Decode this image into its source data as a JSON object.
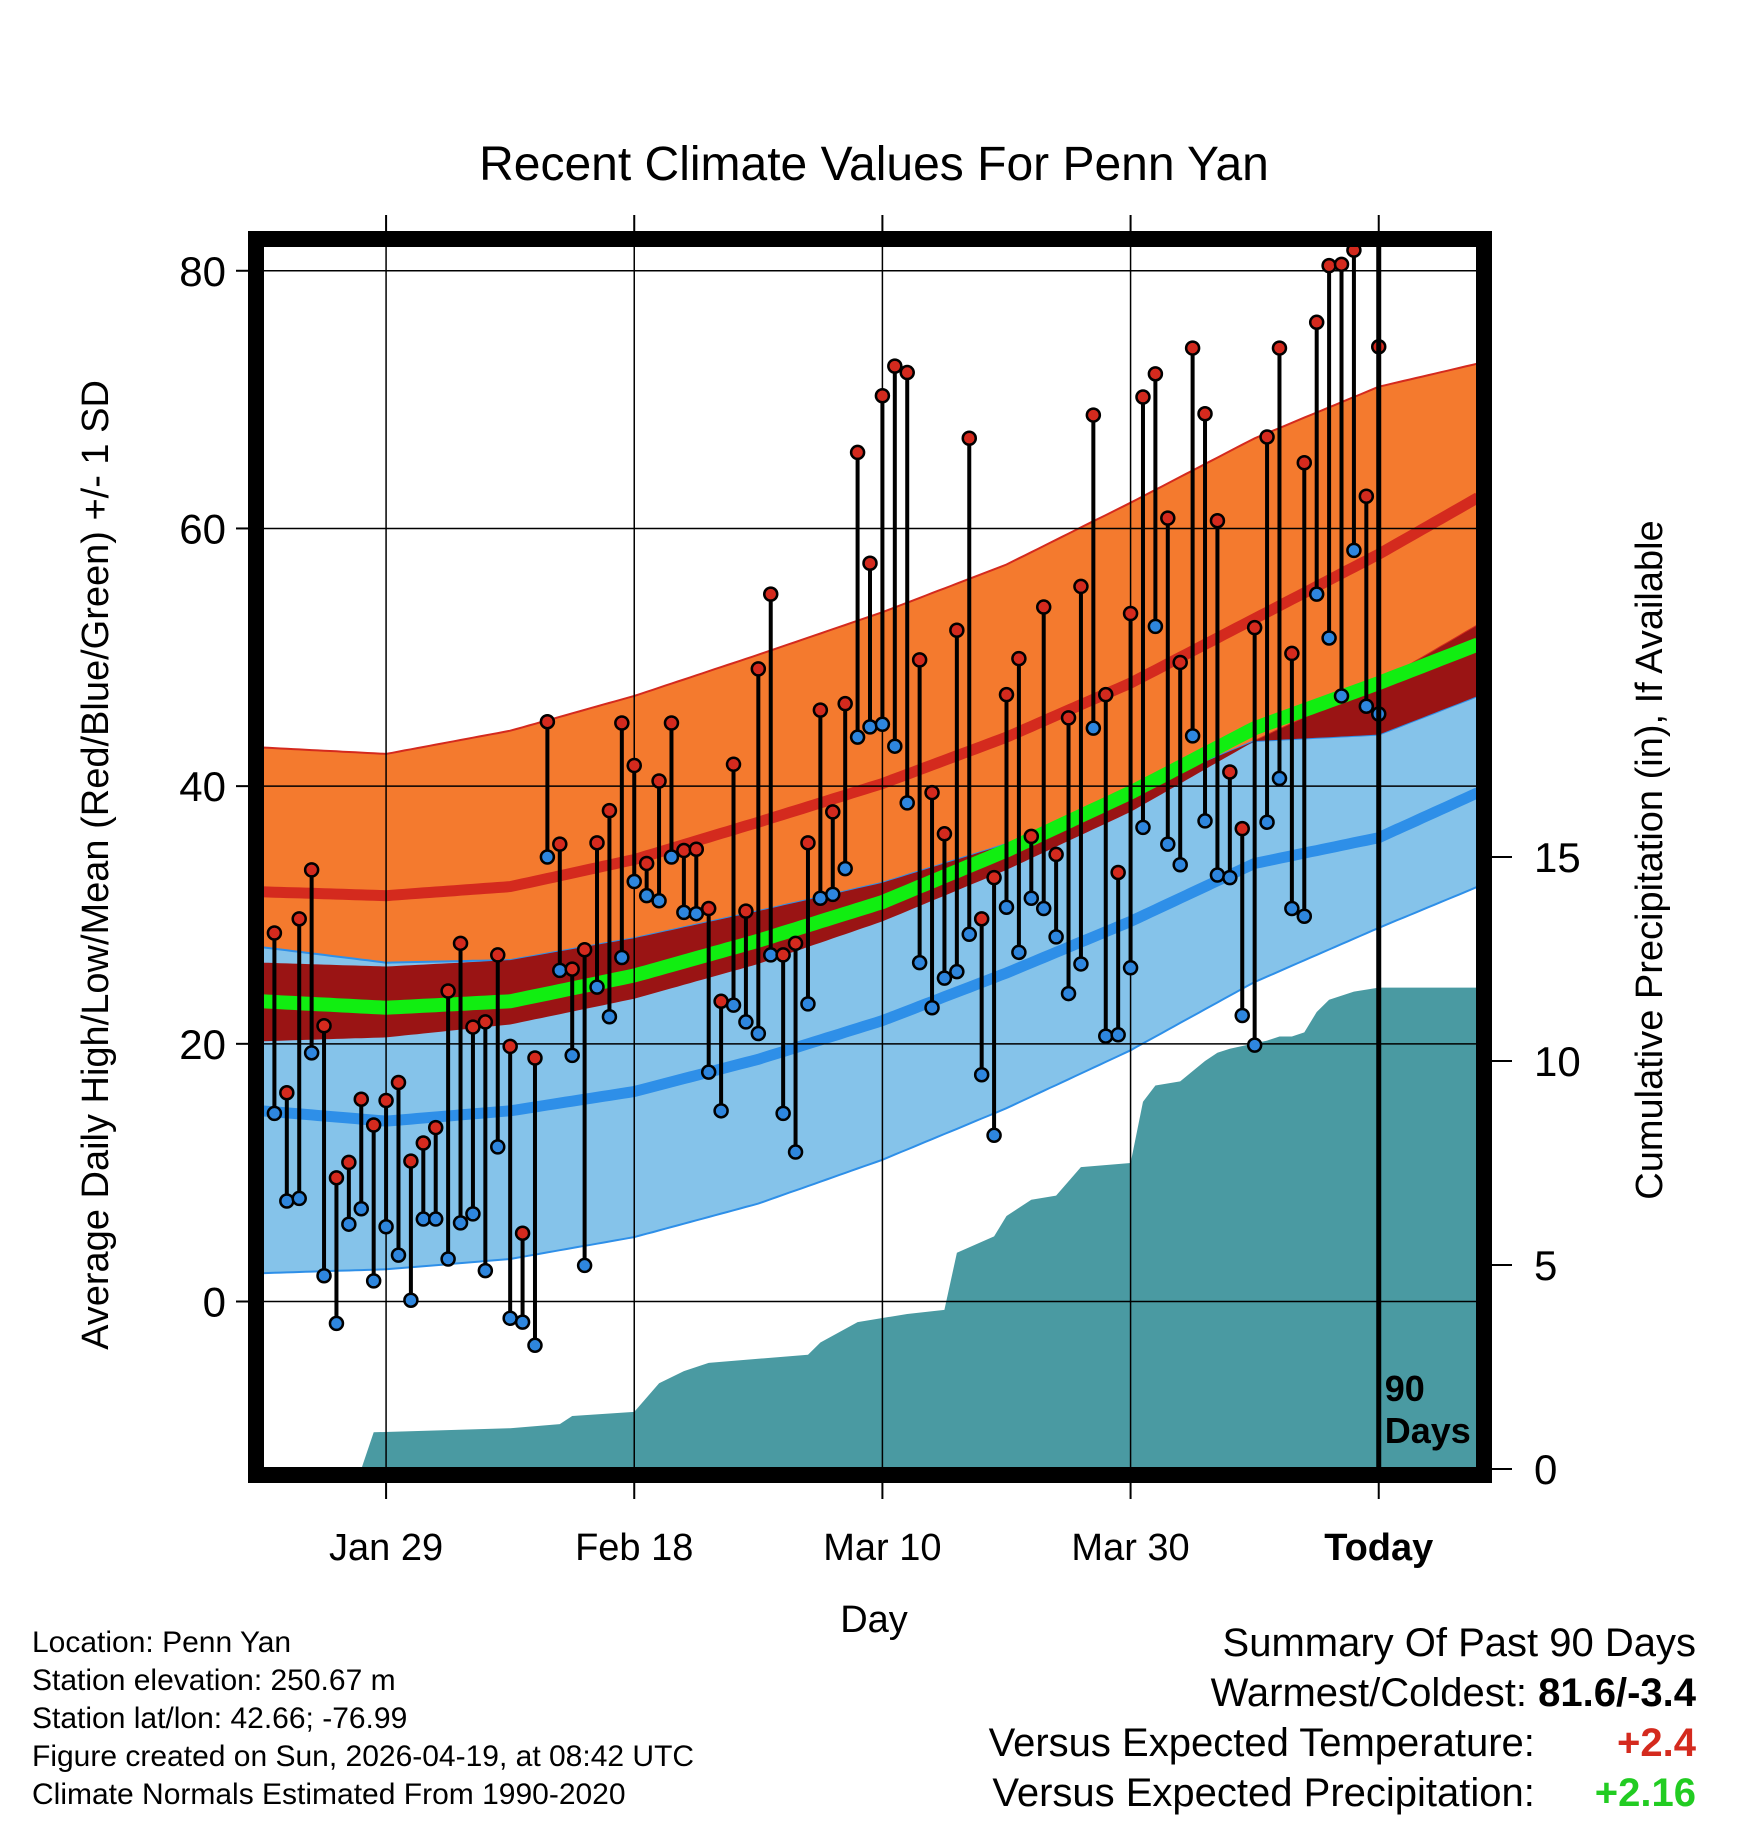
{
  "chart_data": {
    "type": "line",
    "title": "Recent Climate Values For Penn Yan",
    "xlabel": "Day",
    "ylabel": "Average Daily High/Low/Mean (Red/Blue/Green) +/- 1 SD",
    "y2label": "Cumulative Precipitation (in), If Available",
    "ylim": [
      -13,
      82
    ],
    "y_ticks": [
      "0",
      "20",
      "40",
      "60",
      "80"
    ],
    "y2lim": [
      0,
      30
    ],
    "y2_ticks": [
      "0",
      "5",
      "10",
      "15"
    ],
    "x_range_days": [
      -90,
      8
    ],
    "x_ticks": [
      {
        "label": "Jan 29",
        "day": -80
      },
      {
        "label": "Feb 18",
        "day": -60
      },
      {
        "label": "Mar 10",
        "day": -40
      },
      {
        "label": "Mar 30",
        "day": -20
      },
      {
        "label": "Today",
        "day": 0
      }
    ],
    "today_day": 0,
    "today_label": "90\nDays",
    "normals": {
      "days": [
        -90,
        -80,
        -70,
        -60,
        -50,
        -40,
        -30,
        -20,
        -10,
        0,
        8
      ],
      "high_mean": [
        31.8,
        31.5,
        32.2,
        34.3,
        37.2,
        40.2,
        43.8,
        48.0,
        53.0,
        58.0,
        62.4
      ],
      "high_upper": [
        43.0,
        42.5,
        44.3,
        47.0,
        50.2,
        53.5,
        57.2,
        62.0,
        67.0,
        71.0,
        72.8
      ],
      "high_lower": [
        20.2,
        20.5,
        21.5,
        23.5,
        26.2,
        29.5,
        33.5,
        38.0,
        43.5,
        48.0,
        52.5
      ],
      "mean": [
        23.3,
        22.8,
        23.3,
        25.3,
        28.0,
        31.0,
        35.0,
        39.5,
        44.5,
        48.0,
        51.0
      ],
      "low_mean": [
        14.8,
        14.0,
        14.8,
        16.3,
        18.8,
        21.8,
        25.5,
        29.5,
        34.0,
        36.0,
        39.5
      ],
      "low_upper": [
        27.5,
        26.3,
        26.5,
        28.2,
        30.3,
        32.5,
        35.5,
        39.5,
        43.5,
        44.0,
        47.0
      ],
      "low_lower": [
        2.2,
        2.5,
        3.3,
        5.0,
        7.6,
        11.0,
        15.0,
        19.5,
        24.8,
        29.0,
        32.2
      ]
    },
    "series": [
      {
        "name": "Daily High",
        "color": "#d42a1e",
        "values": [
          28.6,
          16.2,
          29.7,
          33.5,
          21.4,
          9.6,
          10.8,
          15.7,
          13.7,
          15.6,
          17.0,
          10.9,
          12.3,
          13.5,
          24.1,
          27.8,
          21.3,
          21.7,
          26.9,
          19.8,
          5.3,
          18.9,
          45.0,
          35.5,
          25.8,
          27.3,
          35.6,
          38.1,
          44.9,
          41.6,
          34.0,
          40.4,
          44.9,
          35.0,
          35.1,
          30.5,
          23.3,
          41.7,
          30.3,
          49.1,
          54.9,
          26.9,
          27.8,
          35.6,
          45.9,
          38.0,
          46.4,
          65.9,
          57.3,
          70.3,
          72.6,
          72.1,
          49.8,
          39.5,
          36.3,
          52.1,
          67.0,
          29.7,
          32.9,
          47.1,
          49.9,
          36.1,
          53.9,
          34.7,
          45.3,
          55.5,
          68.8,
          47.1,
          33.3,
          53.4,
          70.2,
          72.0,
          60.8,
          49.6,
          74.0,
          68.9,
          60.6,
          41.1,
          36.7,
          52.3,
          67.1,
          74.0,
          50.3,
          65.1,
          76.0,
          80.4,
          80.5,
          81.6,
          62.5,
          74.1
        ]
      },
      {
        "name": "Daily Low",
        "color": "#2e86de",
        "values": [
          14.6,
          7.8,
          8.0,
          19.3,
          2.0,
          -1.7,
          6.0,
          7.2,
          1.6,
          5.8,
          3.6,
          0.1,
          6.4,
          6.4,
          3.3,
          6.1,
          6.8,
          2.4,
          12.0,
          -1.3,
          -1.6,
          -3.4,
          34.5,
          25.7,
          19.1,
          2.8,
          24.4,
          22.1,
          26.7,
          32.6,
          31.5,
          31.1,
          34.5,
          30.2,
          30.1,
          17.8,
          14.8,
          23.0,
          21.7,
          20.8,
          26.9,
          14.6,
          11.6,
          23.1,
          31.3,
          31.6,
          33.6,
          43.8,
          44.6,
          44.8,
          43.1,
          38.7,
          26.3,
          22.8,
          25.1,
          25.6,
          28.5,
          17.6,
          12.9,
          30.6,
          27.1,
          31.3,
          30.5,
          28.3,
          23.9,
          26.2,
          44.5,
          20.6,
          20.7,
          25.9,
          36.8,
          52.4,
          35.5,
          33.9,
          43.9,
          37.3,
          33.1,
          32.9,
          22.2,
          19.9,
          37.2,
          40.6,
          30.5,
          29.9,
          54.9,
          51.5,
          47.0,
          58.3,
          46.2,
          45.6
        ]
      }
    ],
    "precip": {
      "days": [
        -90,
        -82,
        -81,
        -70,
        -66,
        -65,
        -60,
        -58,
        -56,
        -54,
        -50,
        -46,
        -45,
        -42,
        -38,
        -35,
        -34,
        -31,
        -30,
        -28,
        -26,
        -24,
        -20,
        -19,
        -18,
        -16,
        -14,
        -13,
        -12,
        -9,
        -8,
        -7,
        -6,
        -5,
        -4,
        -2,
        0,
        8
      ],
      "values": [
        0,
        0,
        0.9,
        1.0,
        1.1,
        1.3,
        1.4,
        2.1,
        2.4,
        2.6,
        2.7,
        2.8,
        3.1,
        3.6,
        3.8,
        3.9,
        5.3,
        5.7,
        6.2,
        6.6,
        6.7,
        7.4,
        7.5,
        9.0,
        9.4,
        9.5,
        10.0,
        10.2,
        10.3,
        10.5,
        10.6,
        10.6,
        10.7,
        11.2,
        11.5,
        11.7,
        11.8,
        11.8
      ]
    }
  },
  "info": {
    "location": "Location: Penn Yan",
    "elevation": "Station elevation: 250.67 m",
    "latlon": "Station lat/lon: 42.66; -76.99",
    "created": "Figure created on Sun, 2026-04-19, at 08:42 UTC",
    "normals": "Climate Normals Estimated From 1990-2020"
  },
  "summary": {
    "title": "Summary Of Past 90 Days",
    "warm_cold_label": "Warmest/Coldest:",
    "warm_cold_value": "81.6/-3.4",
    "temp_label": "Versus Expected Temperature:",
    "temp_value": "+2.4",
    "temp_color": "#d42a1e",
    "precip_label": "Versus Expected Precipitation:",
    "precip_value": "+2.16",
    "precip_color": "#22cc22"
  },
  "colors": {
    "high_band": "#f47a2e",
    "high_line": "#d42a1e",
    "high_dot": "#d42a1e",
    "mean_line": "#11ee11",
    "mean_overlap": "#9a1414",
    "low_band": "#85c3ea",
    "low_line": "#2e8fe8",
    "low_dot": "#2e86de",
    "precip_fill": "#4a9aa2"
  }
}
